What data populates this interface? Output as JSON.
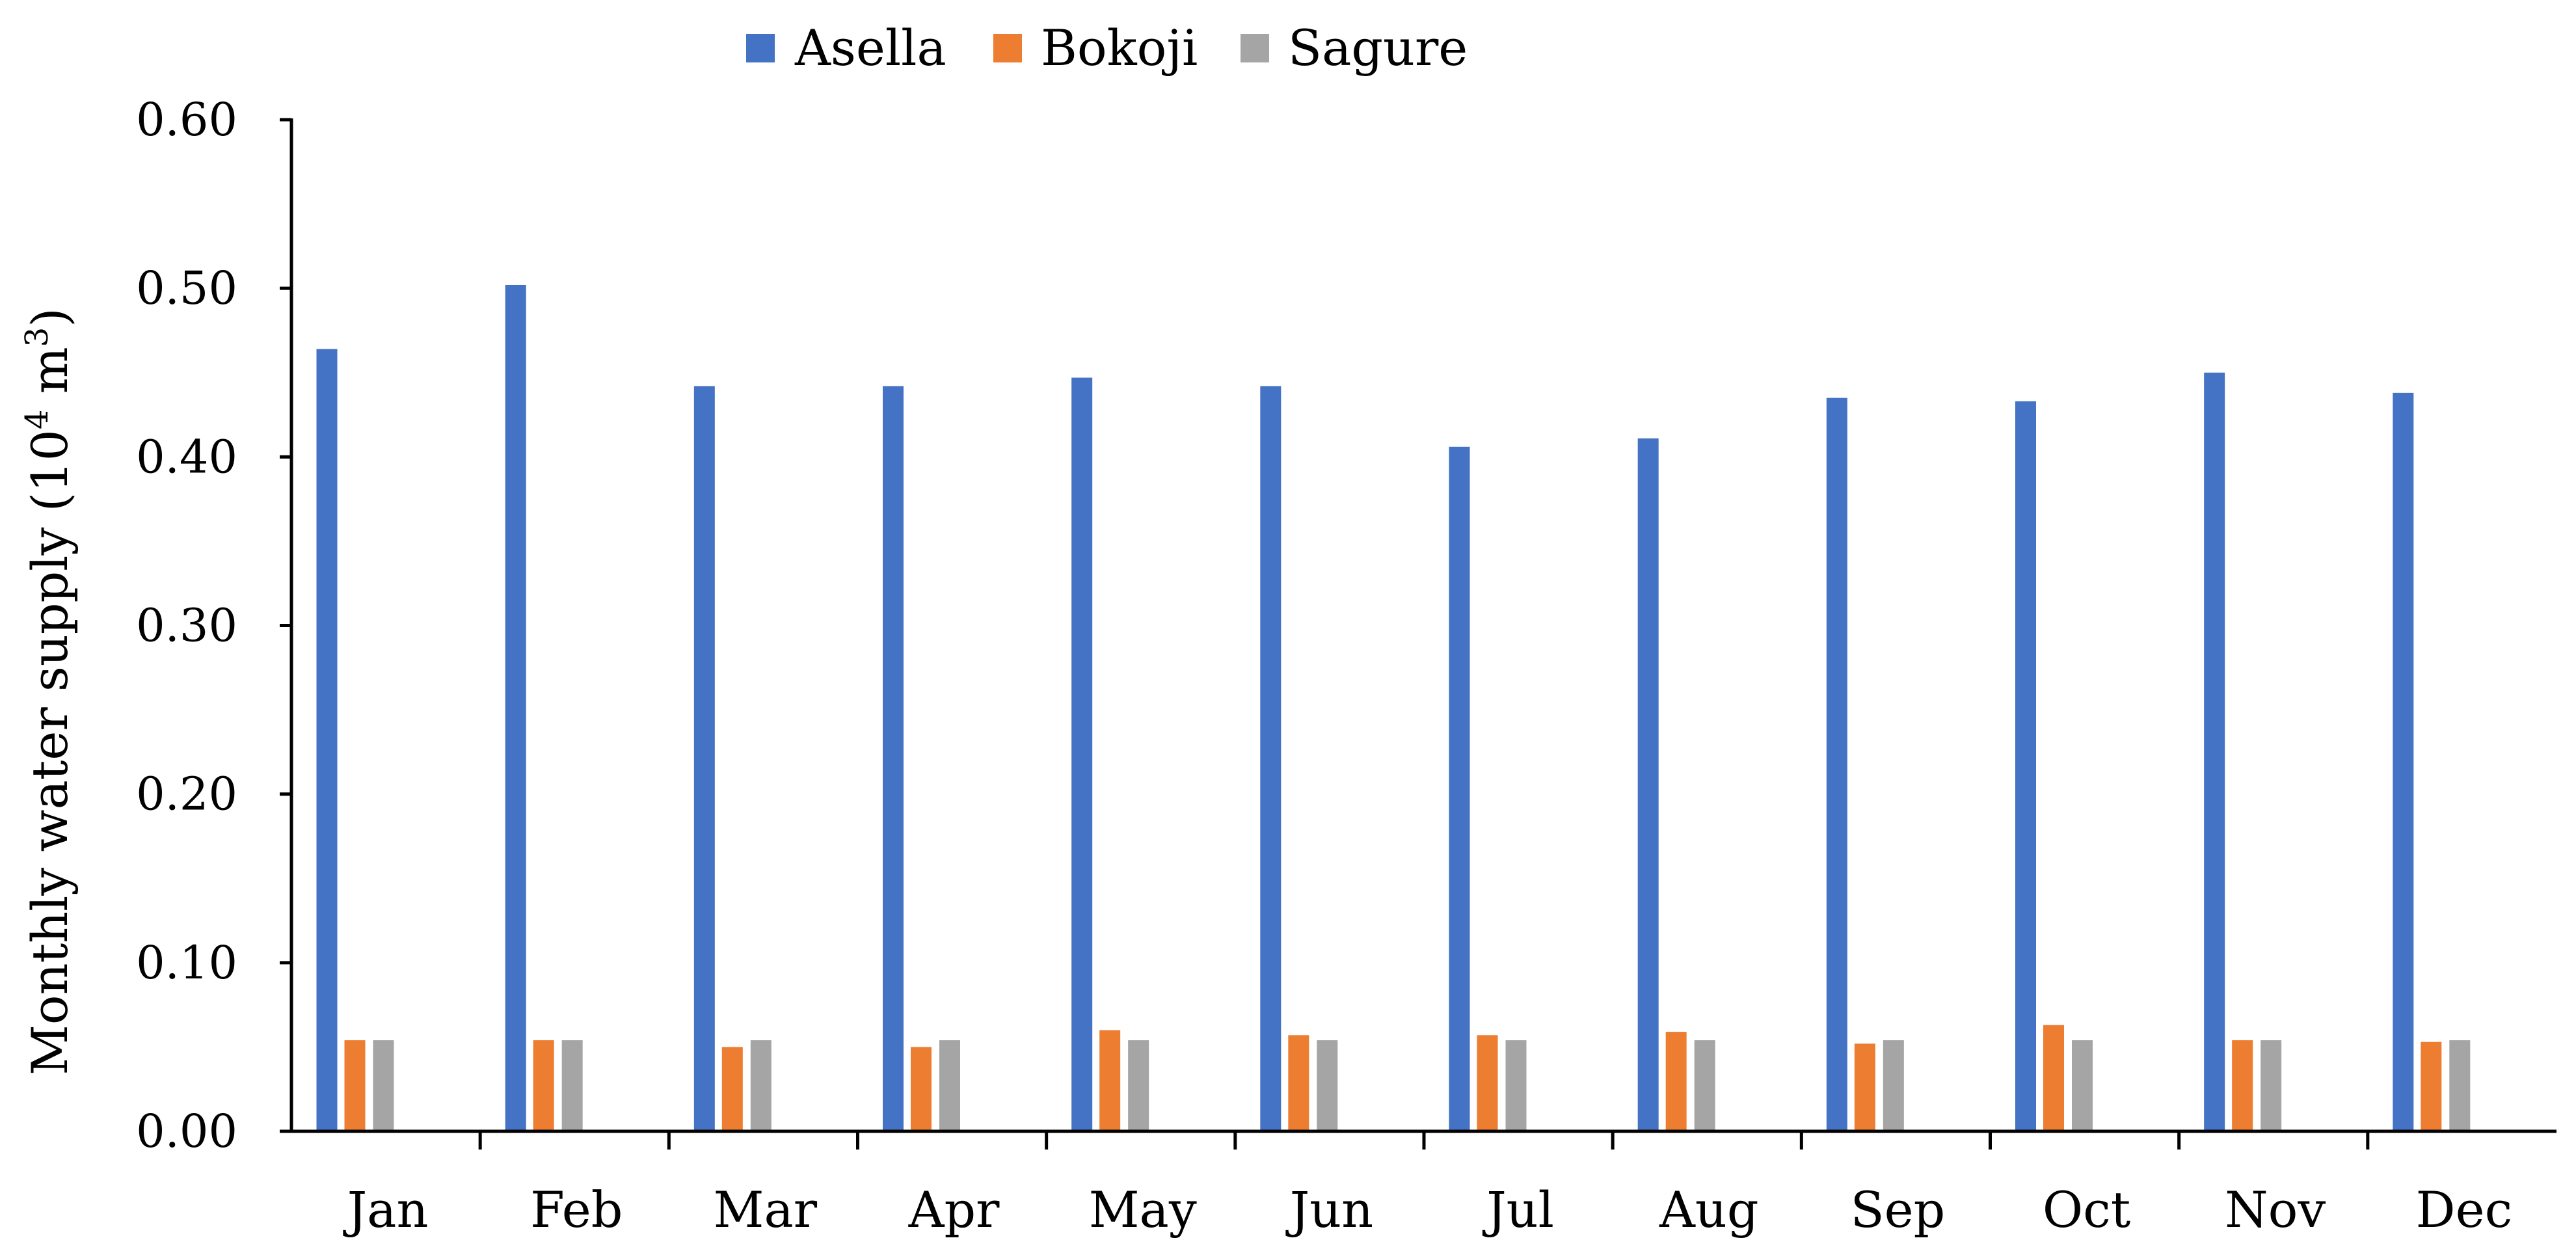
{
  "chart_data": {
    "type": "bar",
    "title": "",
    "xlabel": "",
    "ylabel": {
      "prefix": "Monthly water supply (10",
      "sup1": "4",
      "middle": " m",
      "sup2": "3",
      "suffix": ")"
    },
    "ylim": [
      0,
      0.6
    ],
    "yticks": [
      "0.00",
      "0.10",
      "0.20",
      "0.30",
      "0.40",
      "0.50",
      "0.60"
    ],
    "grid": false,
    "legend_position": "top",
    "categories": [
      "Jan",
      "Feb",
      "Mar",
      "Apr",
      "May",
      "Jun",
      "Jul",
      "Aug",
      "Sep",
      "Oct",
      "Nov",
      "Dec"
    ],
    "series": [
      {
        "name": "Asella",
        "color": "#4472C4",
        "values": [
          0.464,
          0.502,
          0.442,
          0.442,
          0.447,
          0.442,
          0.406,
          0.411,
          0.435,
          0.433,
          0.45,
          0.438
        ]
      },
      {
        "name": "Bokoji",
        "color": "#ED7D31",
        "values": [
          0.054,
          0.054,
          0.05,
          0.05,
          0.06,
          0.057,
          0.057,
          0.059,
          0.052,
          0.063,
          0.054,
          0.053
        ]
      },
      {
        "name": "Sagure",
        "color": "#A5A5A5",
        "values": [
          0.054,
          0.054,
          0.054,
          0.054,
          0.054,
          0.054,
          0.054,
          0.054,
          0.054,
          0.054,
          0.054,
          0.054
        ]
      }
    ]
  }
}
